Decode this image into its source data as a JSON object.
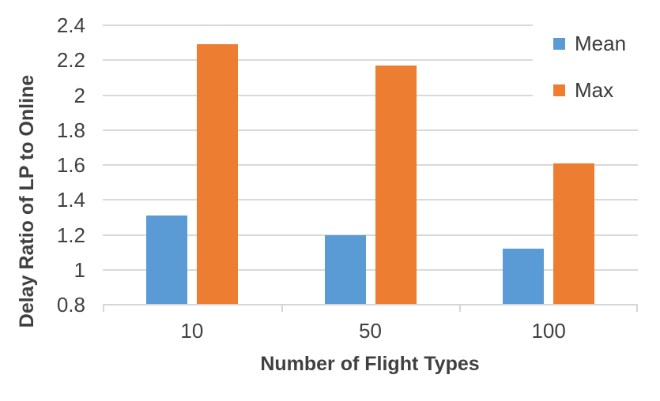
{
  "chart_data": {
    "type": "bar",
    "title": "",
    "xlabel": "Number of Flight Types",
    "ylabel": "Delay Ratio of LP to Online",
    "categories": [
      "10",
      "50",
      "100"
    ],
    "series": [
      {
        "name": "Mean",
        "color": "#5B9BD5",
        "values": [
          1.31,
          1.2,
          1.12
        ]
      },
      {
        "name": "Max",
        "color": "#ED7D31",
        "values": [
          2.29,
          2.17,
          1.61
        ]
      }
    ],
    "ylim": [
      0.8,
      2.4
    ],
    "ytick_labels": [
      "2.4",
      "2.2",
      "2",
      "1.8",
      "1.6",
      "1.4",
      "1.2",
      "1",
      "0.8"
    ],
    "grid": "horizontal",
    "gridline_color": "#D9D9D9",
    "axis_line_color": "#D6D6D6",
    "text_color": "#404040",
    "legend_position": "right-top",
    "legend_entries": [
      "Mean",
      "Max"
    ]
  }
}
